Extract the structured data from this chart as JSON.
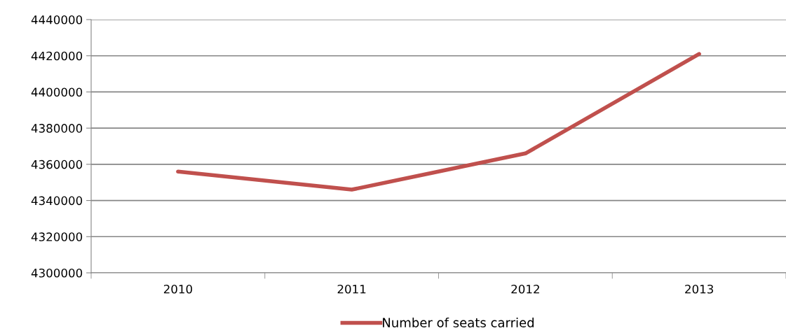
{
  "chart_data": {
    "type": "line",
    "categories": [
      "2010",
      "2011",
      "2012",
      "2013"
    ],
    "series": [
      {
        "name": "Number of seats carried",
        "color": "#c0504d",
        "values": [
          4356000,
          4346000,
          4366000,
          4421000
        ]
      }
    ],
    "ylim": [
      4300000,
      4440000
    ],
    "yticks": [
      4300000,
      4320000,
      4340000,
      4360000,
      4380000,
      4400000,
      4420000,
      4440000
    ],
    "grid": "y",
    "legend": "bottom",
    "marker": "none",
    "line_style": "solid"
  }
}
